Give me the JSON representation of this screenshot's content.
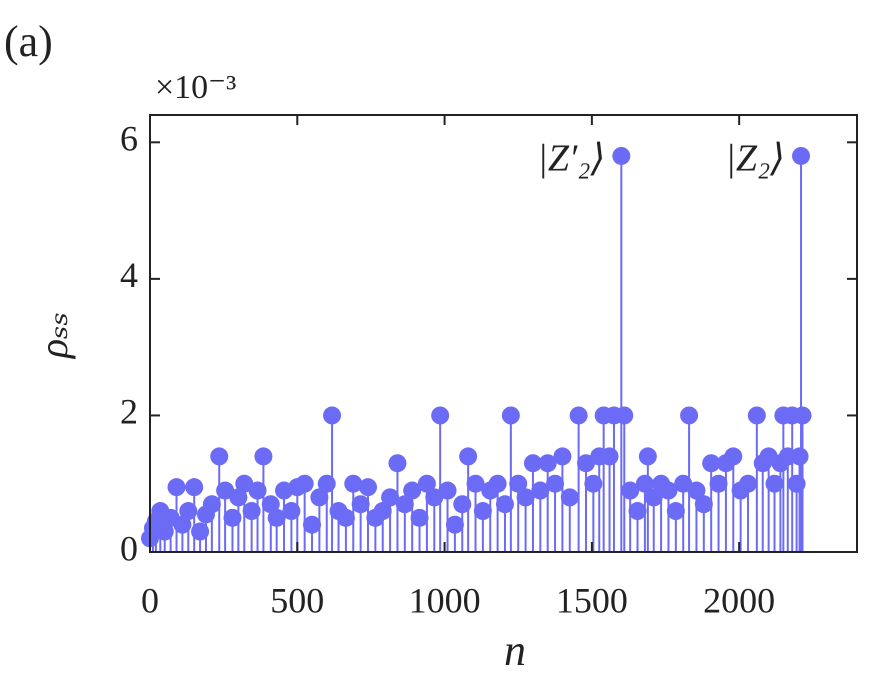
{
  "chart_data": {
    "type": "stem",
    "panel_label": "(a)",
    "y_multiplier": "×10⁻³",
    "y_label": "ρₛₛ",
    "x_label": "n",
    "annotations": [
      {
        "text": "|Z′₂⟩",
        "x": 1600,
        "y": 5.8
      },
      {
        "text": "|Z₂⟩",
        "x": 2210,
        "y": 5.8
      }
    ],
    "color": "#6b6bf5",
    "xlim": [
      0,
      2400
    ],
    "xticks": [
      0,
      500,
      1000,
      1500,
      2000
    ],
    "ylim": [
      0,
      6.4
    ],
    "yticks": [
      0,
      2,
      4,
      6
    ],
    "x": [
      0,
      10,
      20,
      35,
      50,
      70,
      90,
      110,
      130,
      150,
      170,
      190,
      210,
      235,
      255,
      280,
      300,
      320,
      345,
      365,
      385,
      410,
      430,
      455,
      480,
      500,
      525,
      550,
      575,
      600,
      618,
      640,
      665,
      690,
      715,
      740,
      765,
      790,
      815,
      840,
      865,
      890,
      915,
      940,
      965,
      985,
      1010,
      1035,
      1060,
      1080,
      1105,
      1130,
      1155,
      1180,
      1205,
      1225,
      1250,
      1275,
      1300,
      1325,
      1350,
      1375,
      1400,
      1425,
      1455,
      1480,
      1505,
      1525,
      1540,
      1560,
      1575,
      1600,
      1610,
      1630,
      1655,
      1680,
      1690,
      1710,
      1735,
      1760,
      1785,
      1810,
      1830,
      1855,
      1880,
      1905,
      1930,
      1955,
      1980,
      2005,
      2030,
      2060,
      2080,
      2100,
      2120,
      2140,
      2150,
      2165,
      2180,
      2195,
      2205,
      2210,
      2215
    ],
    "values": [
      0.2,
      0.35,
      0.45,
      0.6,
      0.3,
      0.5,
      0.95,
      0.4,
      0.6,
      0.95,
      0.3,
      0.55,
      0.7,
      1.4,
      0.9,
      0.5,
      0.8,
      1.0,
      0.6,
      0.9,
      1.4,
      0.7,
      0.5,
      0.9,
      0.6,
      0.95,
      1.0,
      0.4,
      0.8,
      1.0,
      2.0,
      0.6,
      0.5,
      1.0,
      0.7,
      0.95,
      0.5,
      0.6,
      0.8,
      1.3,
      0.7,
      0.9,
      0.5,
      1.0,
      0.8,
      2.0,
      0.9,
      0.4,
      0.7,
      1.4,
      1.0,
      0.6,
      0.9,
      1.0,
      0.7,
      2.0,
      1.0,
      0.8,
      1.3,
      0.9,
      1.3,
      1.0,
      1.4,
      0.8,
      2.0,
      1.3,
      1.0,
      1.4,
      2.0,
      1.4,
      2.0,
      5.8,
      2.0,
      0.9,
      0.6,
      1.0,
      1.4,
      0.8,
      1.0,
      0.9,
      0.6,
      1.0,
      2.0,
      0.9,
      0.7,
      1.3,
      1.0,
      1.3,
      1.4,
      0.9,
      1.0,
      2.0,
      1.3,
      1.4,
      1.0,
      1.3,
      2.0,
      1.4,
      2.0,
      1.0,
      1.4,
      5.8,
      2.0
    ]
  }
}
